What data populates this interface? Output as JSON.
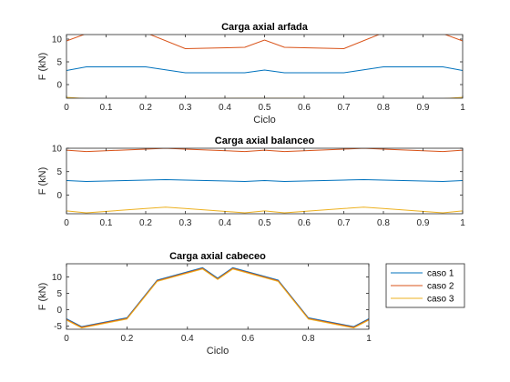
{
  "chart_data": [
    {
      "type": "line",
      "title": "Carga axial arfada",
      "xlabel": "Ciclo",
      "ylabel": "F (kN)",
      "xlim": [
        0,
        1
      ],
      "ylim": [
        -3,
        11
      ],
      "xticks": [
        0,
        0.1,
        0.2,
        0.3,
        0.4,
        0.5,
        0.6,
        0.7,
        0.8,
        0.9,
        1
      ],
      "xtick_labels": [
        "0",
        "0.1",
        "0.2",
        "0.3",
        "0.4",
        "0.5",
        "0.6",
        "0.7",
        "0.8",
        "0.9",
        "1"
      ],
      "yticks": [
        0,
        5,
        10
      ],
      "ytick_labels": [
        "0",
        "5",
        "10"
      ],
      "grid": false,
      "x": [
        0,
        0.05,
        0.2,
        0.3,
        0.45,
        0.5,
        0.55,
        0.7,
        0.8,
        0.95,
        1
      ],
      "series": [
        {
          "values": [
            3.1,
            3.9,
            3.9,
            2.6,
            2.6,
            3.2,
            2.6,
            2.6,
            3.9,
            3.9,
            3.1
          ]
        },
        {
          "values": [
            9.6,
            11.2,
            11.4,
            7.9,
            8.2,
            9.8,
            8.2,
            7.9,
            11.4,
            11.2,
            9.6
          ]
        },
        {
          "values": [
            -2.8,
            -3.1,
            -3.4,
            -3.1,
            -3.0,
            -3.0,
            -3.0,
            -3.1,
            -3.4,
            -3.1,
            -2.8
          ]
        }
      ]
    },
    {
      "type": "line",
      "title": "Carga axial balanceo",
      "xlabel": "",
      "ylabel": "F (kN)",
      "xlim": [
        0,
        1
      ],
      "ylim": [
        -4,
        10
      ],
      "xticks": [
        0,
        0.1,
        0.2,
        0.3,
        0.4,
        0.5,
        0.6,
        0.7,
        0.8,
        0.9,
        1
      ],
      "xtick_labels": [
        "0",
        "0.1",
        "0.2",
        "0.3",
        "0.4",
        "0.5",
        "0.6",
        "0.7",
        "0.8",
        "0.9",
        "1"
      ],
      "yticks": [
        0,
        5,
        10
      ],
      "ytick_labels": [
        "0",
        "5",
        "10"
      ],
      "grid": false,
      "x": [
        0,
        0.05,
        0.2,
        0.25,
        0.3,
        0.45,
        0.5,
        0.55,
        0.7,
        0.75,
        0.8,
        0.95,
        1
      ],
      "series": [
        {
          "values": [
            3.1,
            2.9,
            3.2,
            3.3,
            3.2,
            2.9,
            3.1,
            2.9,
            3.2,
            3.3,
            3.2,
            2.9,
            3.1
          ]
        },
        {
          "values": [
            9.6,
            9.3,
            9.8,
            10.0,
            9.8,
            9.3,
            9.6,
            9.3,
            9.8,
            10.0,
            9.8,
            9.3,
            9.6
          ]
        },
        {
          "values": [
            -3.4,
            -3.8,
            -2.9,
            -2.6,
            -2.9,
            -3.8,
            -3.4,
            -3.8,
            -2.9,
            -2.6,
            -2.9,
            -3.8,
            -3.4
          ]
        }
      ]
    },
    {
      "type": "line",
      "title": "Carga axial cabeceo",
      "xlabel": "Ciclo",
      "ylabel": "F (kN)",
      "xlim": [
        0,
        1
      ],
      "ylim": [
        -6,
        14
      ],
      "xticks": [
        0,
        0.2,
        0.4,
        0.6,
        0.8,
        1
      ],
      "xtick_labels": [
        "0",
        "0.2",
        "0.4",
        "0.6",
        "0.8",
        "1"
      ],
      "yticks": [
        -5,
        0,
        5,
        10
      ],
      "ytick_labels": [
        "-5",
        "0",
        "5",
        "10"
      ],
      "grid": false,
      "x": [
        0,
        0.05,
        0.2,
        0.3,
        0.45,
        0.5,
        0.55,
        0.7,
        0.8,
        0.95,
        1
      ],
      "legend_position": "outside-right",
      "series": [
        {
          "name": "caso 1",
          "values": [
            -2.8,
            -5.2,
            -2.5,
            9.0,
            12.8,
            9.6,
            12.8,
            9.0,
            -2.5,
            -5.2,
            -2.8
          ]
        },
        {
          "name": "caso 2",
          "values": [
            -3.0,
            -5.4,
            -2.7,
            8.8,
            12.6,
            9.4,
            12.6,
            8.8,
            -2.7,
            -5.4,
            -3.0
          ]
        },
        {
          "name": "caso 3",
          "values": [
            -3.2,
            -5.6,
            -2.9,
            8.6,
            12.4,
            9.2,
            12.4,
            8.6,
            -2.9,
            -5.6,
            -3.2
          ]
        }
      ]
    }
  ],
  "colors": [
    "#0072BD",
    "#D95319",
    "#EDB120"
  ]
}
